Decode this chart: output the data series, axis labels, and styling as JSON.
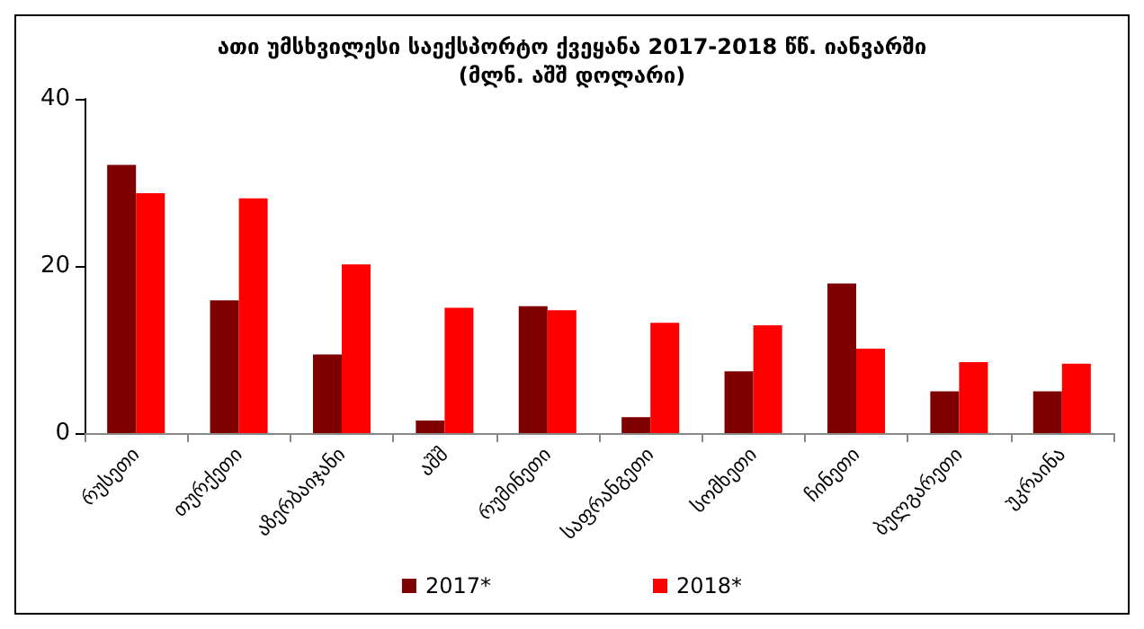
{
  "chart_data": {
    "type": "bar",
    "title": "ათი უმსხვილესი საექსპორტო ქვეყანა 2017-2018 წწ. იანვარში",
    "subtitle": "(მლნ. აშშ დოლარი)",
    "categories": [
      "რუსეთი",
      "თურქეთი",
      "აზერბაიჯანი",
      "აშშ",
      "რუმინეთი",
      "საფრანგეთი",
      "სომხეთი",
      "ჩინეთი",
      "ბულგარეთი",
      "უკრაინა"
    ],
    "series": [
      {
        "name": "2017*",
        "color": "#7f0000",
        "values": [
          32.1,
          15.9,
          9.4,
          1.5,
          15.2,
          1.9,
          7.4,
          17.9,
          5.0,
          5.0
        ]
      },
      {
        "name": "2018*",
        "color": "#ff0000",
        "values": [
          28.7,
          28.1,
          20.2,
          15.0,
          14.7,
          13.2,
          12.9,
          10.1,
          8.5,
          8.3
        ]
      }
    ],
    "ylim": [
      0,
      40
    ],
    "yticks": [
      0,
      20,
      40
    ],
    "grid": false,
    "legend": "bottom"
  }
}
